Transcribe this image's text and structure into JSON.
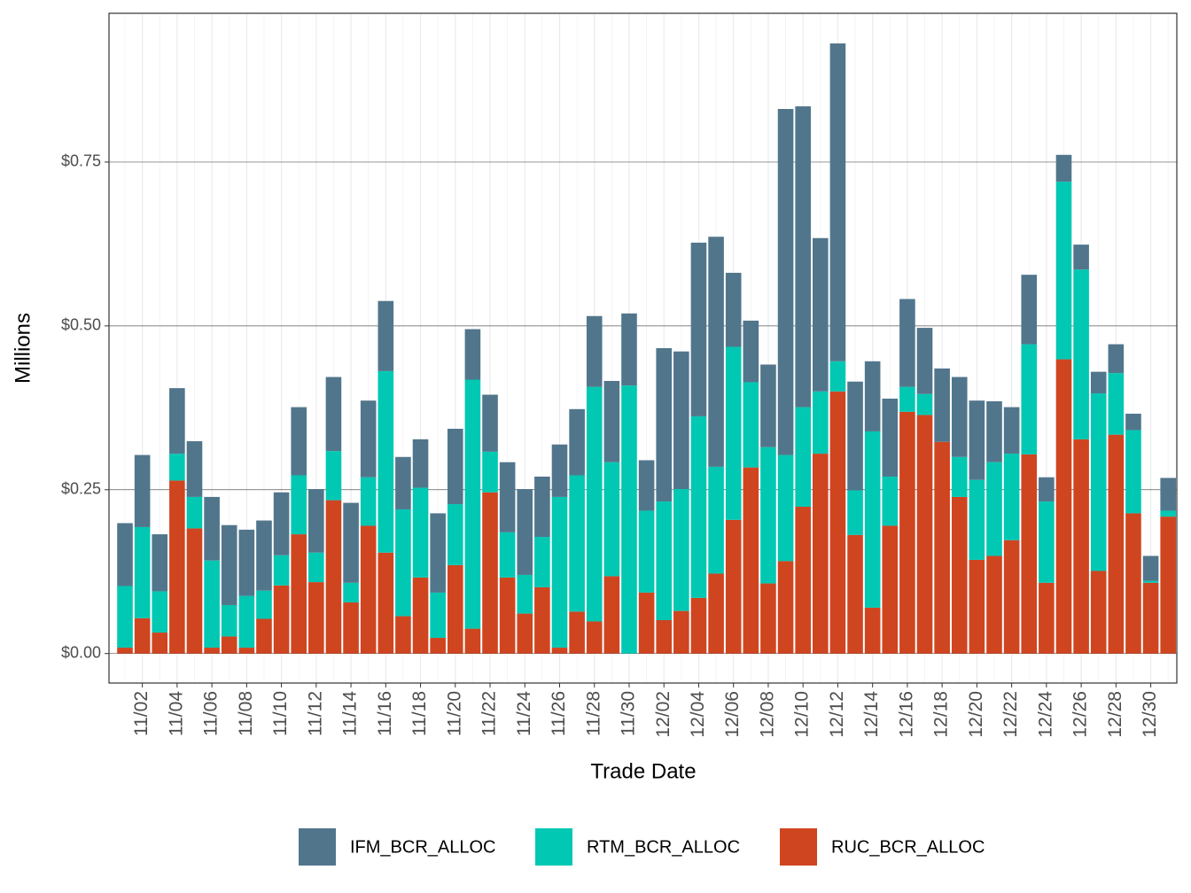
{
  "chart_data": {
    "type": "stacked_bar",
    "x_label": "Trade Date",
    "y_label": "Millions",
    "categories": [
      null,
      "11/02",
      null,
      "11/04",
      null,
      "11/06",
      null,
      "11/08",
      null,
      "11/10",
      null,
      "11/12",
      null,
      "11/14",
      null,
      "11/16",
      null,
      "11/18",
      null,
      "11/20",
      null,
      "11/22",
      null,
      "11/24",
      null,
      "11/26",
      null,
      "11/28",
      null,
      "11/30",
      null,
      "12/02",
      null,
      "12/04",
      null,
      "12/06",
      null,
      "12/08",
      null,
      "12/10",
      null,
      "12/12",
      null,
      "12/14",
      null,
      "12/16",
      null,
      "12/18",
      null,
      "12/20",
      null,
      "12/22",
      null,
      "12/24",
      null,
      "12/26",
      null,
      "12/28",
      null,
      "12/30",
      null
    ],
    "series": [
      {
        "name": "IFM_BCR_ALLOC",
        "color": "#51768c",
        "values": [
          0.096,
          0.11,
          0.087,
          0.1,
          0.085,
          0.097,
          0.122,
          0.101,
          0.107,
          0.096,
          0.104,
          0.097,
          0.113,
          0.122,
          0.117,
          0.107,
          0.08,
          0.074,
          0.121,
          0.115,
          0.077,
          0.087,
          0.107,
          0.131,
          0.092,
          0.08,
          0.101,
          0.108,
          0.124,
          0.11,
          0.077,
          0.234,
          0.21,
          0.265,
          0.351,
          0.113,
          0.094,
          0.126,
          0.528,
          0.459,
          0.234,
          0.485,
          0.166,
          0.107,
          0.119,
          0.134,
          0.101,
          0.112,
          0.122,
          0.121,
          0.093,
          0.071,
          0.106,
          0.037,
          0.041,
          0.038,
          0.033,
          0.044,
          0.025,
          0.038,
          0.05
        ]
      },
      {
        "name": "RTM_BCR_ALLOC",
        "color": "#00c8b3",
        "values": [
          0.094,
          0.139,
          0.063,
          0.041,
          0.048,
          0.133,
          0.048,
          0.079,
          0.043,
          0.046,
          0.09,
          0.045,
          0.075,
          0.03,
          0.074,
          0.277,
          0.163,
          0.137,
          0.069,
          0.093,
          0.38,
          0.062,
          0.069,
          0.059,
          0.077,
          0.23,
          0.208,
          0.358,
          0.174,
          0.409,
          0.125,
          0.181,
          0.186,
          0.277,
          0.163,
          0.264,
          0.13,
          0.208,
          0.162,
          0.152,
          0.095,
          0.046,
          0.068,
          0.269,
          0.075,
          0.038,
          0.032,
          0,
          0.061,
          0.122,
          0.143,
          0.132,
          0.168,
          0.124,
          0.271,
          0.259,
          0.271,
          0.094,
          0.127,
          0.003,
          0.009
        ]
      },
      {
        "name": "RUC_BCR_ALLOC",
        "color": "#cf4520",
        "values": [
          0.009,
          0.054,
          0.032,
          0.264,
          0.191,
          0.009,
          0.026,
          0.009,
          0.053,
          0.104,
          0.182,
          0.109,
          0.234,
          0.078,
          0.195,
          0.154,
          0.057,
          0.116,
          0.024,
          0.135,
          0.038,
          0.246,
          0.116,
          0.061,
          0.101,
          0.009,
          0.064,
          0.049,
          0.118,
          0,
          0.093,
          0.051,
          0.065,
          0.085,
          0.122,
          0.204,
          0.284,
          0.107,
          0.141,
          0.224,
          0.305,
          0.4,
          0.181,
          0.07,
          0.195,
          0.369,
          0.364,
          0.323,
          0.239,
          0.143,
          0.149,
          0.173,
          0.304,
          0.108,
          0.449,
          0.327,
          0.126,
          0.334,
          0.214,
          0.108,
          0.209
        ]
      }
    ],
    "ylim": [
      -0.045,
      0.977
    ],
    "yticks": [
      {
        "value": 0,
        "label": "$0.00"
      },
      {
        "value": 0.25,
        "label": "$0.25"
      },
      {
        "value": 0.5,
        "label": "$0.50"
      },
      {
        "value": 0.75,
        "label": "$0.75"
      }
    ],
    "grid": true,
    "legend_position": "bottom"
  }
}
